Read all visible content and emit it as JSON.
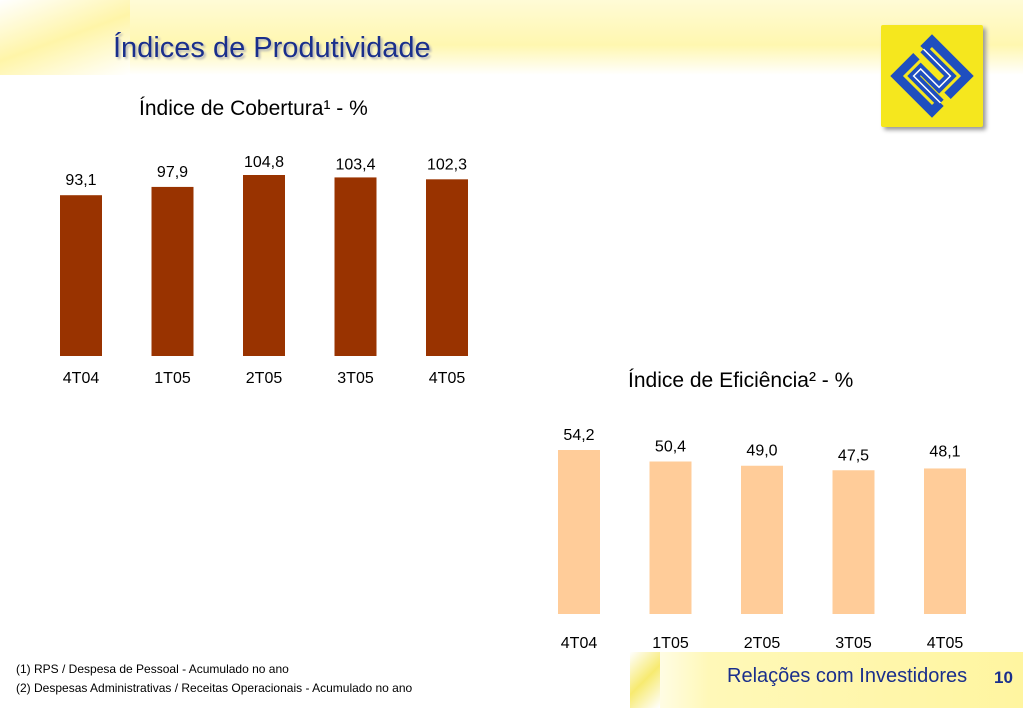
{
  "header": {
    "title": "Índices de Produtividade"
  },
  "colors": {
    "title_blue": "#1a2f8c",
    "cobertura_bar": "#993300",
    "eficiencia_bar": "#ffcc99",
    "logo_yellow": "#f5e71e",
    "logo_blue": "#1f4fbf"
  },
  "logo": {
    "icon": "banco-do-brasil-logo-icon"
  },
  "chart_data": [
    {
      "type": "bar",
      "title": "Índice de Cobertura¹ - %",
      "categories": [
        "4T04",
        "1T05",
        "2T05",
        "3T05",
        "4T05"
      ],
      "values": [
        93.1,
        97.9,
        104.8,
        103.4,
        102.3
      ],
      "value_labels": [
        "93,1",
        "97,9",
        "104,8",
        "103,4",
        "102,3"
      ],
      "xlabel": "",
      "ylabel": "",
      "grid": false
    },
    {
      "type": "bar",
      "title": "Índice de Eficiência² - %",
      "categories": [
        "4T04",
        "1T05",
        "2T05",
        "3T05",
        "4T05"
      ],
      "values": [
        54.2,
        50.4,
        49.0,
        47.5,
        48.1
      ],
      "value_labels": [
        "54,2",
        "50,4",
        "49,0",
        "47,5",
        "48,1"
      ],
      "xlabel": "",
      "ylabel": "",
      "grid": false
    }
  ],
  "footnotes": [
    "(1) RPS / Despesa de Pessoal - Acumulado no ano",
    "(2) Despesas Administrativas / Receitas Operacionais - Acumulado no ano"
  ],
  "footer": {
    "text": "Relações com Investidores",
    "page_number": "10"
  }
}
